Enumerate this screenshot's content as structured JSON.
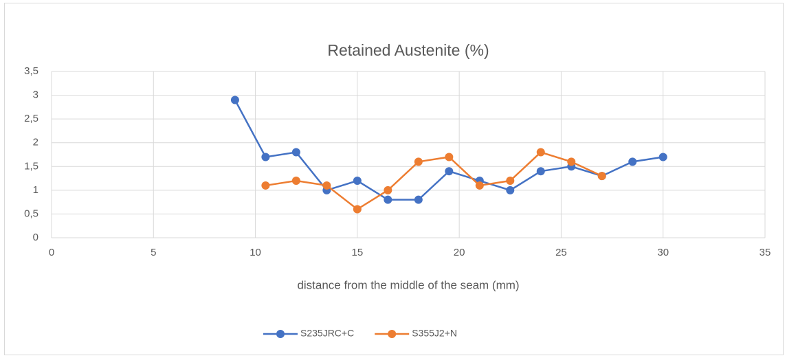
{
  "chart_data": {
    "type": "line",
    "title": "Retained Austenite (%)",
    "x_label": "distance from the middle of the seam (mm)",
    "xlim": [
      0,
      35
    ],
    "xticks": [
      0,
      5,
      10,
      15,
      20,
      25,
      30,
      35
    ],
    "ylim": [
      0,
      3.5
    ],
    "yticks": [
      0,
      {
        "value": 0.5,
        "label": "0,5"
      },
      1,
      {
        "value": 1.5,
        "label": "1,5"
      },
      2,
      {
        "value": 2.5,
        "label": "2,5"
      },
      3,
      {
        "value": 3.5,
        "label": "3,5"
      }
    ],
    "grid": true,
    "legend": "bottom",
    "series": [
      {
        "name": "S235JRC+C",
        "color": "#4472c4",
        "x": [
          9,
          10.5,
          12,
          13.5,
          15,
          16.5,
          18,
          19.5,
          21,
          22.5,
          24,
          25.5,
          27,
          28.5,
          30
        ],
        "values": [
          2.9,
          1.7,
          1.8,
          1.0,
          1.2,
          0.8,
          0.8,
          1.4,
          1.2,
          1.0,
          1.4,
          1.5,
          1.3,
          1.6,
          1.7
        ]
      },
      {
        "name": "S355J2+N",
        "color": "#ed7d31",
        "x": [
          10.5,
          12,
          13.5,
          15,
          16.5,
          18,
          19.5,
          21,
          22.5,
          24,
          25.5,
          27
        ],
        "values": [
          1.1,
          1.2,
          1.1,
          0.6,
          1.0,
          1.6,
          1.7,
          1.1,
          1.2,
          1.8,
          1.6,
          1.3
        ]
      }
    ]
  }
}
